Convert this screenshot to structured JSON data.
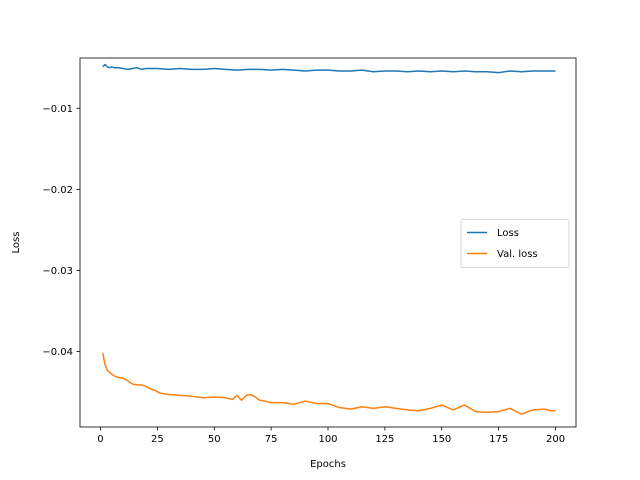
{
  "chart_data": {
    "type": "line",
    "title": "",
    "xlabel": "Epochs",
    "ylabel": "Loss",
    "xlim": [
      -9,
      209
    ],
    "ylim": [
      -0.0493,
      -0.0038
    ],
    "xticks": [
      0,
      25,
      50,
      75,
      100,
      125,
      150,
      175,
      200
    ],
    "xtick_labels": [
      "0",
      "25",
      "50",
      "75",
      "100",
      "125",
      "150",
      "175",
      "200"
    ],
    "yticks": [
      -0.01,
      -0.02,
      -0.03,
      -0.04
    ],
    "ytick_labels": [
      "−0.01",
      "−0.02",
      "−0.03",
      "−0.04"
    ],
    "grid": false,
    "legend": "center-right",
    "series": [
      {
        "name": "Loss",
        "color": "#1f77b4",
        "x": [
          1,
          2,
          3,
          4,
          5,
          6,
          8,
          10,
          12,
          14,
          16,
          18,
          20,
          25,
          30,
          35,
          40,
          45,
          50,
          55,
          60,
          65,
          70,
          75,
          80,
          85,
          90,
          95,
          100,
          105,
          110,
          115,
          120,
          125,
          130,
          135,
          140,
          145,
          150,
          155,
          160,
          165,
          170,
          175,
          180,
          185,
          190,
          195,
          200
        ],
        "y": [
          -0.0049,
          -0.0046,
          -0.0049,
          -0.005,
          -0.0049,
          -0.005,
          -0.005,
          -0.0051,
          -0.0052,
          -0.0051,
          -0.005,
          -0.0052,
          -0.0051,
          -0.0051,
          -0.0052,
          -0.0051,
          -0.0052,
          -0.0052,
          -0.0051,
          -0.0052,
          -0.0053,
          -0.0052,
          -0.0052,
          -0.0053,
          -0.0052,
          -0.0053,
          -0.0054,
          -0.0053,
          -0.0053,
          -0.0054,
          -0.0054,
          -0.0053,
          -0.0055,
          -0.0054,
          -0.0054,
          -0.0055,
          -0.0054,
          -0.0055,
          -0.0054,
          -0.0055,
          -0.0054,
          -0.0055,
          -0.0055,
          -0.0056,
          -0.0054,
          -0.0055,
          -0.0054,
          -0.0054,
          -0.0054
        ]
      },
      {
        "name": "Val. loss",
        "color": "#ff7f0e",
        "x": [
          1,
          2,
          3,
          4,
          6,
          8,
          10,
          12,
          14,
          16,
          18,
          20,
          22,
          24,
          26,
          28,
          30,
          35,
          40,
          45,
          50,
          55,
          58,
          60,
          62,
          64,
          66,
          68,
          70,
          72,
          75,
          80,
          85,
          90,
          95,
          100,
          105,
          110,
          115,
          120,
          125,
          130,
          135,
          140,
          145,
          150,
          155,
          160,
          165,
          170,
          175,
          180,
          185,
          190,
          195,
          198,
          200
        ],
        "y": [
          -0.0402,
          -0.0416,
          -0.0423,
          -0.0426,
          -0.043,
          -0.0432,
          -0.0433,
          -0.0436,
          -0.044,
          -0.0441,
          -0.0441,
          -0.0443,
          -0.0446,
          -0.0448,
          -0.0451,
          -0.0452,
          -0.0453,
          -0.0454,
          -0.0455,
          -0.0457,
          -0.0456,
          -0.0457,
          -0.0459,
          -0.0454,
          -0.046,
          -0.0454,
          -0.0453,
          -0.0456,
          -0.046,
          -0.0461,
          -0.0463,
          -0.0463,
          -0.0465,
          -0.0461,
          -0.0464,
          -0.0464,
          -0.0469,
          -0.0471,
          -0.0468,
          -0.047,
          -0.0468,
          -0.047,
          -0.0472,
          -0.0473,
          -0.047,
          -0.0466,
          -0.0472,
          -0.0466,
          -0.0474,
          -0.0475,
          -0.0474,
          -0.047,
          -0.0477,
          -0.0472,
          -0.0471,
          -0.0473,
          -0.0473
        ]
      }
    ]
  }
}
